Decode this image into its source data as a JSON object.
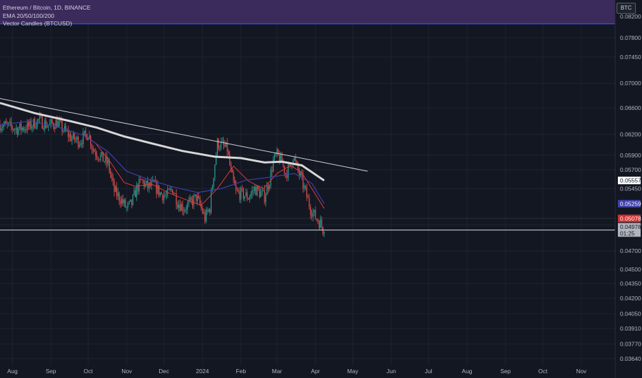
{
  "legend": {
    "symbol_line": "Ethereum / Bitcoin, 1D, BINANCE",
    "ema_line": "EMA 20/50/100/200",
    "vector_line": "Vector Candles (BTCUSD)"
  },
  "symbol_badge": "BTC",
  "price_labels": {
    "ema200": "0.05557",
    "ema50": "0.05259",
    "last": "0.05078",
    "close": "0.04978",
    "countdown": "01:25"
  },
  "colors": {
    "background": "#131722",
    "up": "#26a69a",
    "down": "#ef5350",
    "ema20": "#e53935",
    "ema50": "#3f3fa8",
    "ema200": "#d7d7d7",
    "band": "#3b2a5c"
  },
  "chart_data": {
    "type": "candlestick",
    "title": "Ethereum / Bitcoin, 1D, BINANCE",
    "scale": "log",
    "y_ticks": [
      0.082,
      0.078,
      0.0745,
      0.07,
      0.066,
      0.062,
      0.059,
      0.057,
      0.0545,
      0.05,
      0.047,
      0.045,
      0.0435,
      0.042,
      0.0405,
      0.0391,
      0.0377,
      0.0364
    ],
    "y_tick_labels": [
      "0.08200",
      "0.07800",
      "0.07450",
      "0.07000",
      "0.06600",
      "0.06200",
      "0.05900",
      "0.05700",
      "0.05450",
      "0.05000",
      "0.04700",
      "0.04500",
      "0.04350",
      "0.04200",
      "0.04050",
      "0.03910",
      "0.03770",
      "0.03640"
    ],
    "x_labels": [
      "Aug",
      "Sep",
      "Oct",
      "Nov",
      "Dec",
      "2024",
      "Feb",
      "Mar",
      "Apr",
      "May",
      "Jun",
      "Jul",
      "Aug",
      "Sep",
      "Oct",
      "Nov"
    ],
    "x_label_dates": [
      "2023-08-01",
      "2023-09-01",
      "2023-10-01",
      "2023-11-01",
      "2023-12-01",
      "2024-01-01",
      "2024-02-01",
      "2024-03-01",
      "2024-04-01",
      "2024-05-01",
      "2024-06-01",
      "2024-07-01",
      "2024-08-01",
      "2024-09-01",
      "2024-10-01",
      "2024-11-01"
    ],
    "close_path": [
      [
        "2023-07-22",
        0.0635
      ],
      [
        "2023-07-28",
        0.0632
      ],
      [
        "2023-08-05",
        0.0628
      ],
      [
        "2023-08-15",
        0.0632
      ],
      [
        "2023-08-22",
        0.0641
      ],
      [
        "2023-08-30",
        0.0633
      ],
      [
        "2023-09-06",
        0.0638
      ],
      [
        "2023-09-12",
        0.0625
      ],
      [
        "2023-09-18",
        0.0614
      ],
      [
        "2023-09-24",
        0.061
      ],
      [
        "2023-10-01",
        0.0622
      ],
      [
        "2023-10-05",
        0.0598
      ],
      [
        "2023-10-12",
        0.0586
      ],
      [
        "2023-10-17",
        0.0578
      ],
      [
        "2023-10-22",
        0.0542
      ],
      [
        "2023-10-27",
        0.0532
      ],
      [
        "2023-11-01",
        0.052
      ],
      [
        "2023-11-05",
        0.0526
      ],
      [
        "2023-11-09",
        0.0545
      ],
      [
        "2023-11-13",
        0.0555
      ],
      [
        "2023-11-18",
        0.0547
      ],
      [
        "2023-11-23",
        0.055
      ],
      [
        "2023-11-28",
        0.0539
      ],
      [
        "2023-12-03",
        0.0535
      ],
      [
        "2023-12-08",
        0.0545
      ],
      [
        "2023-12-12",
        0.0528
      ],
      [
        "2023-12-17",
        0.052
      ],
      [
        "2023-12-22",
        0.0526
      ],
      [
        "2023-12-27",
        0.0534
      ],
      [
        "2023-12-30",
        0.0524
      ],
      [
        "2024-01-03",
        0.0508
      ],
      [
        "2024-01-07",
        0.0521
      ],
      [
        "2024-01-10",
        0.0565
      ],
      [
        "2024-01-13",
        0.0607
      ],
      [
        "2024-01-17",
        0.0604
      ],
      [
        "2024-01-21",
        0.0598
      ],
      [
        "2024-01-24",
        0.0565
      ],
      [
        "2024-01-28",
        0.054
      ],
      [
        "2024-02-02",
        0.0538
      ],
      [
        "2024-02-07",
        0.0534
      ],
      [
        "2024-02-12",
        0.0545
      ],
      [
        "2024-02-16",
        0.054
      ],
      [
        "2024-02-20",
        0.0535
      ],
      [
        "2024-02-24",
        0.0556
      ],
      [
        "2024-02-27",
        0.0582
      ],
      [
        "2024-03-01",
        0.059
      ],
      [
        "2024-03-05",
        0.058
      ],
      [
        "2024-03-08",
        0.0565
      ],
      [
        "2024-03-12",
        0.0575
      ],
      [
        "2024-03-14",
        0.059
      ],
      [
        "2024-03-17",
        0.0572
      ],
      [
        "2024-03-20",
        0.056
      ],
      [
        "2024-03-24",
        0.054
      ],
      [
        "2024-03-28",
        0.052
      ],
      [
        "2024-04-01",
        0.0509
      ],
      [
        "2024-04-05",
        0.0502
      ],
      [
        "2024-04-07",
        0.0495
      ],
      [
        "2024-04-08",
        0.0498
      ]
    ],
    "ema_series": [
      {
        "name": "EMA 20",
        "points": [
          [
            "2023-09-26",
            0.0622
          ],
          [
            "2023-10-07",
            0.0607
          ],
          [
            "2023-10-19",
            0.058
          ],
          [
            "2023-10-30",
            0.0553
          ],
          [
            "2023-11-08",
            0.0548
          ],
          [
            "2023-11-21",
            0.0551
          ],
          [
            "2023-12-04",
            0.054
          ],
          [
            "2023-12-17",
            0.0532
          ],
          [
            "2023-12-31",
            0.0524
          ],
          [
            "2024-01-13",
            0.0545
          ],
          [
            "2024-01-26",
            0.0575
          ],
          [
            "2024-02-07",
            0.0555
          ],
          [
            "2024-02-19",
            0.0545
          ],
          [
            "2024-03-01",
            0.0565
          ],
          [
            "2024-03-12",
            0.0576
          ],
          [
            "2024-03-21",
            0.0566
          ],
          [
            "2024-03-31",
            0.054
          ],
          [
            "2024-04-08",
            0.052
          ]
        ]
      },
      {
        "name": "EMA 50",
        "points": [
          [
            "2023-07-22",
            0.0634
          ],
          [
            "2023-08-16",
            0.064
          ],
          [
            "2023-09-08",
            0.063
          ],
          [
            "2023-09-28",
            0.0618
          ],
          [
            "2023-10-17",
            0.0595
          ],
          [
            "2023-11-01",
            0.0568
          ],
          [
            "2023-11-20",
            0.0556
          ],
          [
            "2023-12-09",
            0.0547
          ],
          [
            "2023-12-28",
            0.054
          ],
          [
            "2024-01-16",
            0.0545
          ],
          [
            "2024-02-05",
            0.0556
          ],
          [
            "2024-02-24",
            0.056
          ],
          [
            "2024-03-15",
            0.0565
          ],
          [
            "2024-03-29",
            0.0552
          ],
          [
            "2024-04-08",
            0.05259
          ]
        ]
      },
      {
        "name": "EMA 200",
        "points": [
          [
            "2023-07-22",
            0.0668
          ],
          [
            "2023-08-19",
            0.0652
          ],
          [
            "2023-09-16",
            0.064
          ],
          [
            "2023-10-08",
            0.063
          ],
          [
            "2023-10-30",
            0.0617
          ],
          [
            "2023-11-23",
            0.0606
          ],
          [
            "2023-12-16",
            0.0596
          ],
          [
            "2024-01-11",
            0.0588
          ],
          [
            "2024-02-01",
            0.0586
          ],
          [
            "2024-02-20",
            0.058
          ],
          [
            "2024-03-05",
            0.0581
          ],
          [
            "2024-03-21",
            0.0576
          ],
          [
            "2024-04-08",
            0.05557
          ]
        ]
      }
    ],
    "trendline": [
      [
        "2023-07-22",
        0.0675
      ],
      [
        "2024-05-13",
        0.0568
      ]
    ],
    "horizontal_level": 0.0494,
    "band_above": 0.0806,
    "last_price": 0.05078,
    "close_price": 0.04978,
    "ylim": [
      0.0358,
      0.0853
    ],
    "grid": true
  }
}
